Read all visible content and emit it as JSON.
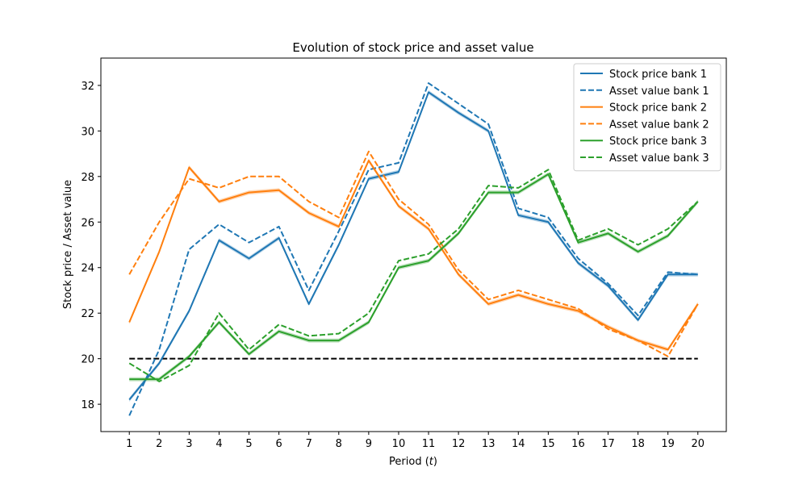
{
  "chart_data": {
    "type": "line",
    "title": "Evolution of stock price and asset value",
    "xlabel_main": "Period (",
    "xlabel_var": "t",
    "xlabel_end": ")",
    "ylabel": "Stock price / Asset value",
    "xlim": [
      0.05,
      20.95
    ],
    "ylim": [
      16.8,
      33.2
    ],
    "x": [
      1,
      2,
      3,
      4,
      5,
      6,
      7,
      8,
      9,
      10,
      11,
      12,
      13,
      14,
      15,
      16,
      17,
      18,
      19,
      20
    ],
    "yticks": [
      18,
      20,
      22,
      24,
      26,
      28,
      30,
      32
    ],
    "threshold": {
      "value": 20,
      "color": "#000000"
    },
    "legend_position": "top-right",
    "series": [
      {
        "name": "Stock price bank 1",
        "style": "solid",
        "color": "#1f77b4",
        "values": [
          18.2,
          19.8,
          22.1,
          25.2,
          24.4,
          25.3,
          22.4,
          25.0,
          27.9,
          28.2,
          31.7,
          30.8,
          30.0,
          26.3,
          26.0,
          24.2,
          23.2,
          21.7,
          23.7,
          23.7
        ]
      },
      {
        "name": "Asset value bank 1",
        "style": "dashed",
        "color": "#1f77b4",
        "values": [
          17.5,
          20.4,
          24.8,
          25.9,
          25.1,
          25.8,
          23.0,
          25.6,
          28.3,
          28.6,
          32.1,
          31.2,
          30.3,
          26.6,
          26.2,
          24.4,
          23.3,
          21.9,
          23.8,
          23.7
        ]
      },
      {
        "name": "Stock price bank 2",
        "style": "solid",
        "color": "#ff7f0e",
        "values": [
          21.6,
          24.7,
          28.4,
          26.9,
          27.3,
          27.4,
          26.4,
          25.8,
          28.7,
          26.7,
          25.7,
          23.7,
          22.4,
          22.8,
          22.4,
          22.1,
          21.4,
          20.8,
          20.4,
          22.4
        ]
      },
      {
        "name": "Asset value bank 2",
        "style": "dashed",
        "color": "#ff7f0e",
        "values": [
          23.7,
          26.0,
          27.9,
          27.5,
          28.0,
          28.0,
          26.9,
          26.2,
          29.1,
          27.0,
          25.9,
          23.9,
          22.6,
          23.0,
          22.6,
          22.2,
          21.3,
          20.8,
          20.1,
          22.4
        ]
      },
      {
        "name": "Stock price bank 3",
        "style": "solid",
        "color": "#2ca02c",
        "values": [
          19.1,
          19.1,
          20.1,
          21.6,
          20.2,
          21.2,
          20.8,
          20.8,
          21.6,
          24.0,
          24.3,
          25.5,
          27.3,
          27.3,
          28.1,
          25.1,
          25.5,
          24.7,
          25.4,
          26.9
        ]
      },
      {
        "name": "Asset value bank 3",
        "style": "dashed",
        "color": "#2ca02c",
        "values": [
          19.8,
          19.0,
          19.7,
          22.0,
          20.4,
          21.5,
          21.0,
          21.1,
          22.0,
          24.3,
          24.6,
          25.7,
          27.6,
          27.5,
          28.3,
          25.2,
          25.7,
          25.0,
          25.7,
          26.9
        ]
      }
    ]
  }
}
